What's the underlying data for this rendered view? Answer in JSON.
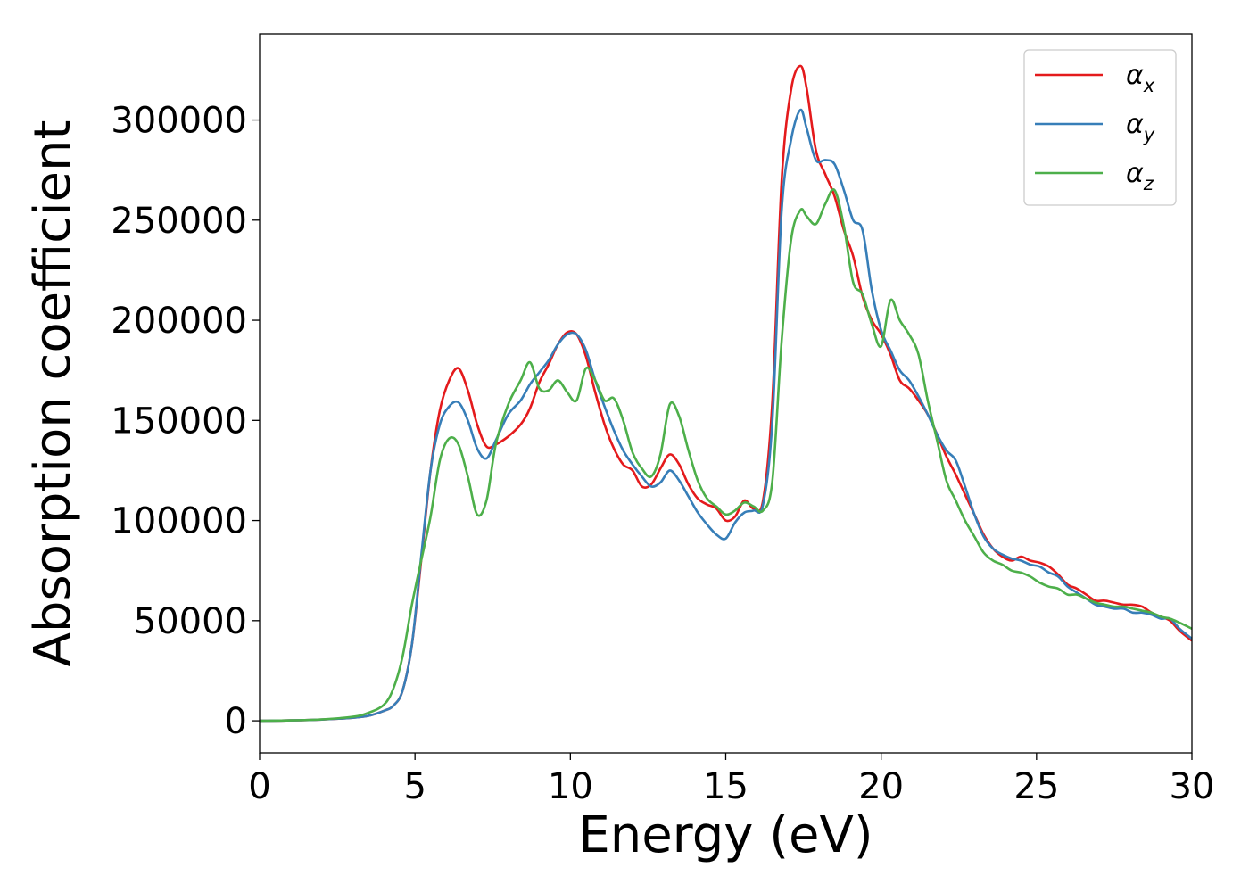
{
  "chart_data": {
    "type": "line",
    "title": "",
    "xlabel": "Energy (eV)",
    "ylabel": "Absorption coefficient",
    "xlim": [
      0,
      30
    ],
    "ylim": [
      -16000,
      343000
    ],
    "xticks": [
      0,
      5,
      10,
      15,
      20,
      25,
      30
    ],
    "yticks": [
      0,
      50000,
      100000,
      150000,
      200000,
      250000,
      300000
    ],
    "grid": false,
    "legend_position": "top-right",
    "series": [
      {
        "name": "α",
        "subscript": "x",
        "color": "#e41a1c",
        "x": [
          0,
          1,
          2,
          3,
          3.5,
          4,
          4.3,
          4.6,
          4.9,
          5.2,
          5.5,
          5.8,
          6.1,
          6.4,
          6.7,
          7.0,
          7.3,
          7.6,
          8.0,
          8.4,
          8.7,
          9.0,
          9.3,
          9.6,
          9.9,
          10.2,
          10.5,
          10.8,
          11.1,
          11.4,
          11.7,
          12.0,
          12.3,
          12.6,
          12.9,
          13.2,
          13.5,
          13.8,
          14.1,
          14.4,
          14.7,
          15.0,
          15.3,
          15.6,
          15.9,
          16.2,
          16.5,
          16.8,
          17.1,
          17.4,
          17.6,
          17.9,
          18.2,
          18.5,
          18.8,
          19.1,
          19.4,
          19.7,
          20.0,
          20.3,
          20.6,
          20.9,
          21.2,
          21.5,
          21.8,
          22.1,
          22.4,
          22.7,
          23.0,
          23.3,
          23.6,
          23.9,
          24.2,
          24.5,
          24.8,
          25.1,
          25.4,
          25.7,
          26.0,
          26.3,
          26.6,
          26.9,
          27.2,
          27.5,
          27.8,
          28.1,
          28.4,
          28.7,
          29.0,
          29.3,
          29.6,
          30.0
        ],
        "y": [
          0,
          200,
          600,
          1500,
          2500,
          5000,
          7500,
          15000,
          38000,
          80000,
          125000,
          155000,
          170000,
          176000,
          165000,
          148000,
          137000,
          138000,
          142000,
          148000,
          156000,
          169000,
          178000,
          188000,
          194000,
          193000,
          182000,
          164000,
          148000,
          136000,
          128000,
          125000,
          117000,
          118000,
          126000,
          133000,
          128000,
          118000,
          111000,
          108000,
          106000,
          100000,
          102000,
          110000,
          106000,
          110000,
          160000,
          270000,
          315000,
          327000,
          316000,
          285000,
          273000,
          262000,
          245000,
          232000,
          212000,
          200000,
          193000,
          183000,
          170000,
          166000,
          160000,
          153000,
          143000,
          132000,
          123000,
          113000,
          103000,
          93000,
          86000,
          82000,
          80000,
          82000,
          80000,
          79000,
          77000,
          73000,
          68000,
          66000,
          63000,
          60000,
          60000,
          59000,
          58000,
          58000,
          57000,
          54000,
          52000,
          50000,
          45000,
          40000
        ]
      },
      {
        "name": "α",
        "subscript": "y",
        "color": "#377eb8",
        "x": [
          0,
          1,
          2,
          3,
          3.5,
          4,
          4.3,
          4.6,
          4.9,
          5.2,
          5.5,
          5.8,
          6.1,
          6.4,
          6.7,
          7.0,
          7.3,
          7.6,
          8.0,
          8.4,
          8.7,
          9.0,
          9.3,
          9.6,
          9.9,
          10.2,
          10.5,
          10.8,
          11.1,
          11.4,
          11.7,
          12.0,
          12.3,
          12.6,
          12.9,
          13.2,
          13.5,
          13.8,
          14.1,
          14.4,
          14.7,
          15.0,
          15.3,
          15.6,
          15.9,
          16.2,
          16.5,
          16.8,
          17.1,
          17.4,
          17.6,
          17.9,
          18.2,
          18.5,
          18.8,
          19.1,
          19.4,
          19.7,
          20.0,
          20.3,
          20.6,
          20.9,
          21.2,
          21.5,
          21.8,
          22.1,
          22.4,
          22.7,
          23.0,
          23.3,
          23.6,
          23.9,
          24.2,
          24.5,
          24.8,
          25.1,
          25.4,
          25.7,
          26.0,
          26.3,
          26.6,
          26.9,
          27.2,
          27.5,
          27.8,
          28.1,
          28.4,
          28.7,
          29.0,
          29.3,
          29.6,
          30.0
        ],
        "y": [
          0,
          200,
          600,
          1500,
          2500,
          5000,
          7500,
          15000,
          38000,
          82000,
          125000,
          148000,
          157000,
          159000,
          150000,
          136000,
          131000,
          140000,
          153000,
          160000,
          168000,
          174000,
          180000,
          188000,
          193000,
          193000,
          185000,
          170000,
          157000,
          145000,
          135000,
          128000,
          122000,
          117000,
          119000,
          125000,
          120000,
          112000,
          104000,
          98000,
          93000,
          91000,
          99000,
          104000,
          105000,
          108000,
          150000,
          255000,
          290000,
          305000,
          296000,
          280000,
          280000,
          278000,
          265000,
          250000,
          245000,
          215000,
          195000,
          185000,
          175000,
          170000,
          162000,
          153000,
          143000,
          135000,
          130000,
          117000,
          103000,
          92000,
          86000,
          83000,
          81000,
          80000,
          78000,
          77000,
          74000,
          72000,
          67000,
          64000,
          61000,
          58000,
          57000,
          56000,
          56000,
          54000,
          54000,
          53000,
          51000,
          51000,
          46000,
          41000
        ]
      },
      {
        "name": "α",
        "subscript": "z",
        "color": "#4daf4a",
        "x": [
          0,
          1,
          2,
          3,
          3.5,
          4,
          4.3,
          4.6,
          4.9,
          5.2,
          5.5,
          5.8,
          6.1,
          6.4,
          6.7,
          7.0,
          7.3,
          7.6,
          8.0,
          8.4,
          8.7,
          9.0,
          9.3,
          9.6,
          9.9,
          10.2,
          10.5,
          10.8,
          11.1,
          11.4,
          11.7,
          12.0,
          12.3,
          12.6,
          12.9,
          13.2,
          13.5,
          13.8,
          14.1,
          14.4,
          14.7,
          15.0,
          15.3,
          15.6,
          15.9,
          16.2,
          16.5,
          16.8,
          17.1,
          17.4,
          17.6,
          17.9,
          18.2,
          18.5,
          18.8,
          19.1,
          19.4,
          19.7,
          20.0,
          20.3,
          20.6,
          20.9,
          21.2,
          21.5,
          21.8,
          22.1,
          22.4,
          22.7,
          23.0,
          23.3,
          23.6,
          23.9,
          24.2,
          24.5,
          24.8,
          25.1,
          25.4,
          25.7,
          26.0,
          26.3,
          26.6,
          26.9,
          27.2,
          27.5,
          27.8,
          28.1,
          28.4,
          28.7,
          29.0,
          29.3,
          29.6,
          30.0
        ],
        "y": [
          0,
          200,
          700,
          2000,
          4000,
          8000,
          16000,
          32000,
          58000,
          80000,
          102000,
          130000,
          141000,
          138000,
          122000,
          103000,
          110000,
          138000,
          158000,
          170000,
          179000,
          166000,
          165000,
          170000,
          164000,
          160000,
          176000,
          170000,
          160000,
          161000,
          150000,
          134000,
          126000,
          122000,
          133000,
          158000,
          152000,
          135000,
          120000,
          111000,
          107000,
          103000,
          105000,
          109000,
          107000,
          105000,
          120000,
          190000,
          240000,
          255000,
          252000,
          248000,
          258000,
          265000,
          247000,
          219000,
          213000,
          198000,
          187000,
          210000,
          200000,
          193000,
          183000,
          160000,
          140000,
          120000,
          110000,
          100000,
          92000,
          84000,
          80000,
          78000,
          75000,
          74000,
          72000,
          69000,
          67000,
          66000,
          63000,
          63000,
          61000,
          59000,
          58000,
          57000,
          57000,
          56000,
          55000,
          54000,
          52000,
          51000,
          49000,
          46000
        ]
      }
    ]
  }
}
